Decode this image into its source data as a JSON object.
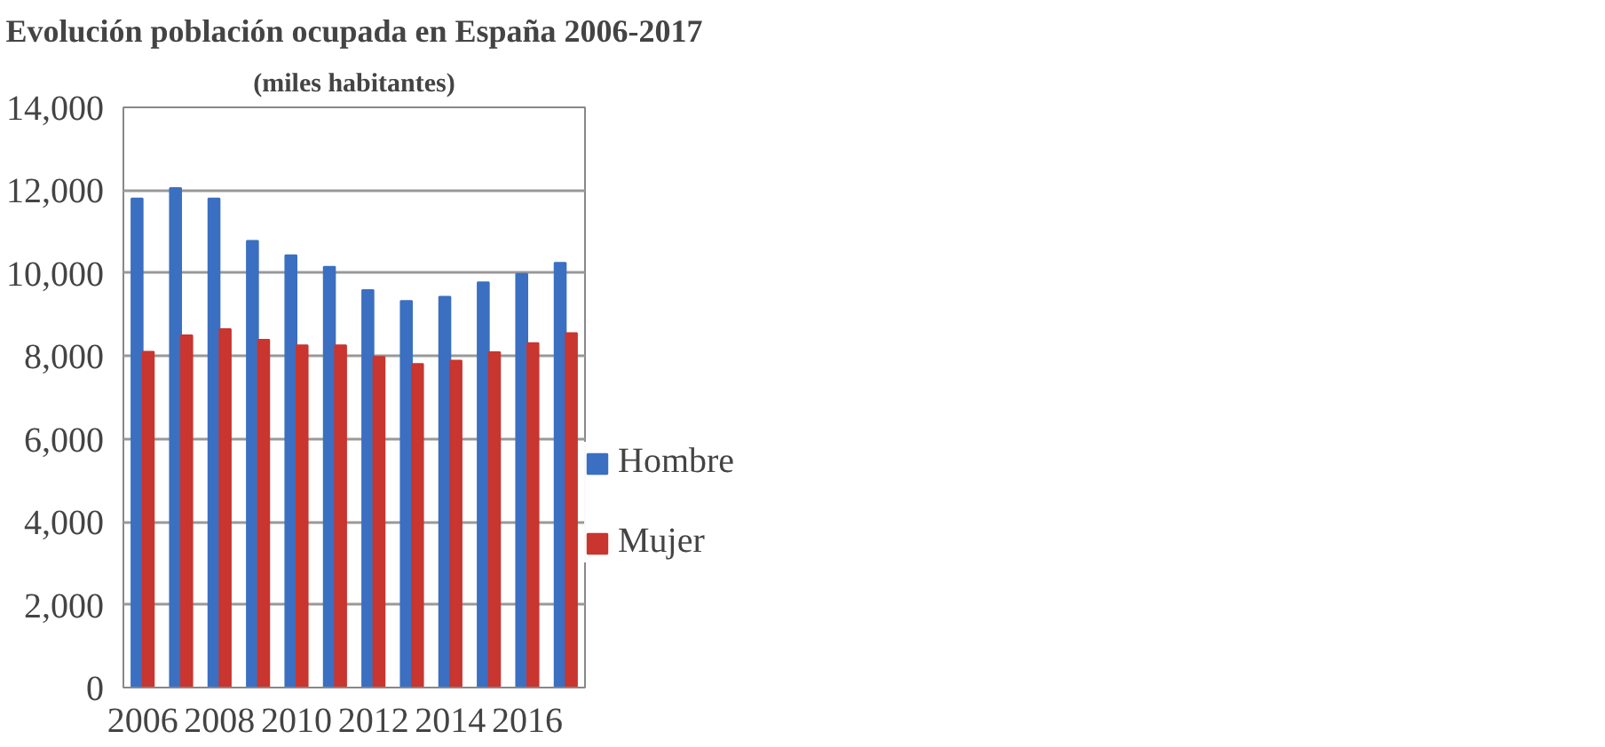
{
  "chart_data": {
    "type": "bar",
    "title": "Evolución población ocupada en España 2006-2017",
    "subtitle": "(miles habitantes)",
    "categories": [
      "2006",
      null,
      "2008",
      null,
      "2010",
      null,
      "2012",
      null,
      "2014",
      null,
      "2016",
      null
    ],
    "series": [
      {
        "name": "Hombre",
        "color": "#3b6fc1",
        "values": [
          11800,
          12050,
          11800,
          10780,
          10430,
          10150,
          9590,
          9330,
          9430,
          9780,
          9980,
          10250
        ]
      },
      {
        "name": "Mujer",
        "color": "#c9352f",
        "values": [
          8100,
          8500,
          8650,
          8390,
          8260,
          8260,
          7980,
          7810,
          7890,
          8090,
          8310,
          8550
        ]
      }
    ],
    "ylim": [
      0,
      14000
    ],
    "yticks": [
      {
        "value": 0,
        "label": "0"
      },
      {
        "value": 2000,
        "label": "2,000"
      },
      {
        "value": 4000,
        "label": "4,000"
      },
      {
        "value": 6000,
        "label": "6,000"
      },
      {
        "value": 8000,
        "label": "8,000"
      },
      {
        "value": 10000,
        "label": "10,000"
      },
      {
        "value": 12000,
        "label": "12,000"
      },
      {
        "value": 14000,
        "label": "14,000"
      }
    ],
    "grid": "y",
    "legend": "right"
  }
}
